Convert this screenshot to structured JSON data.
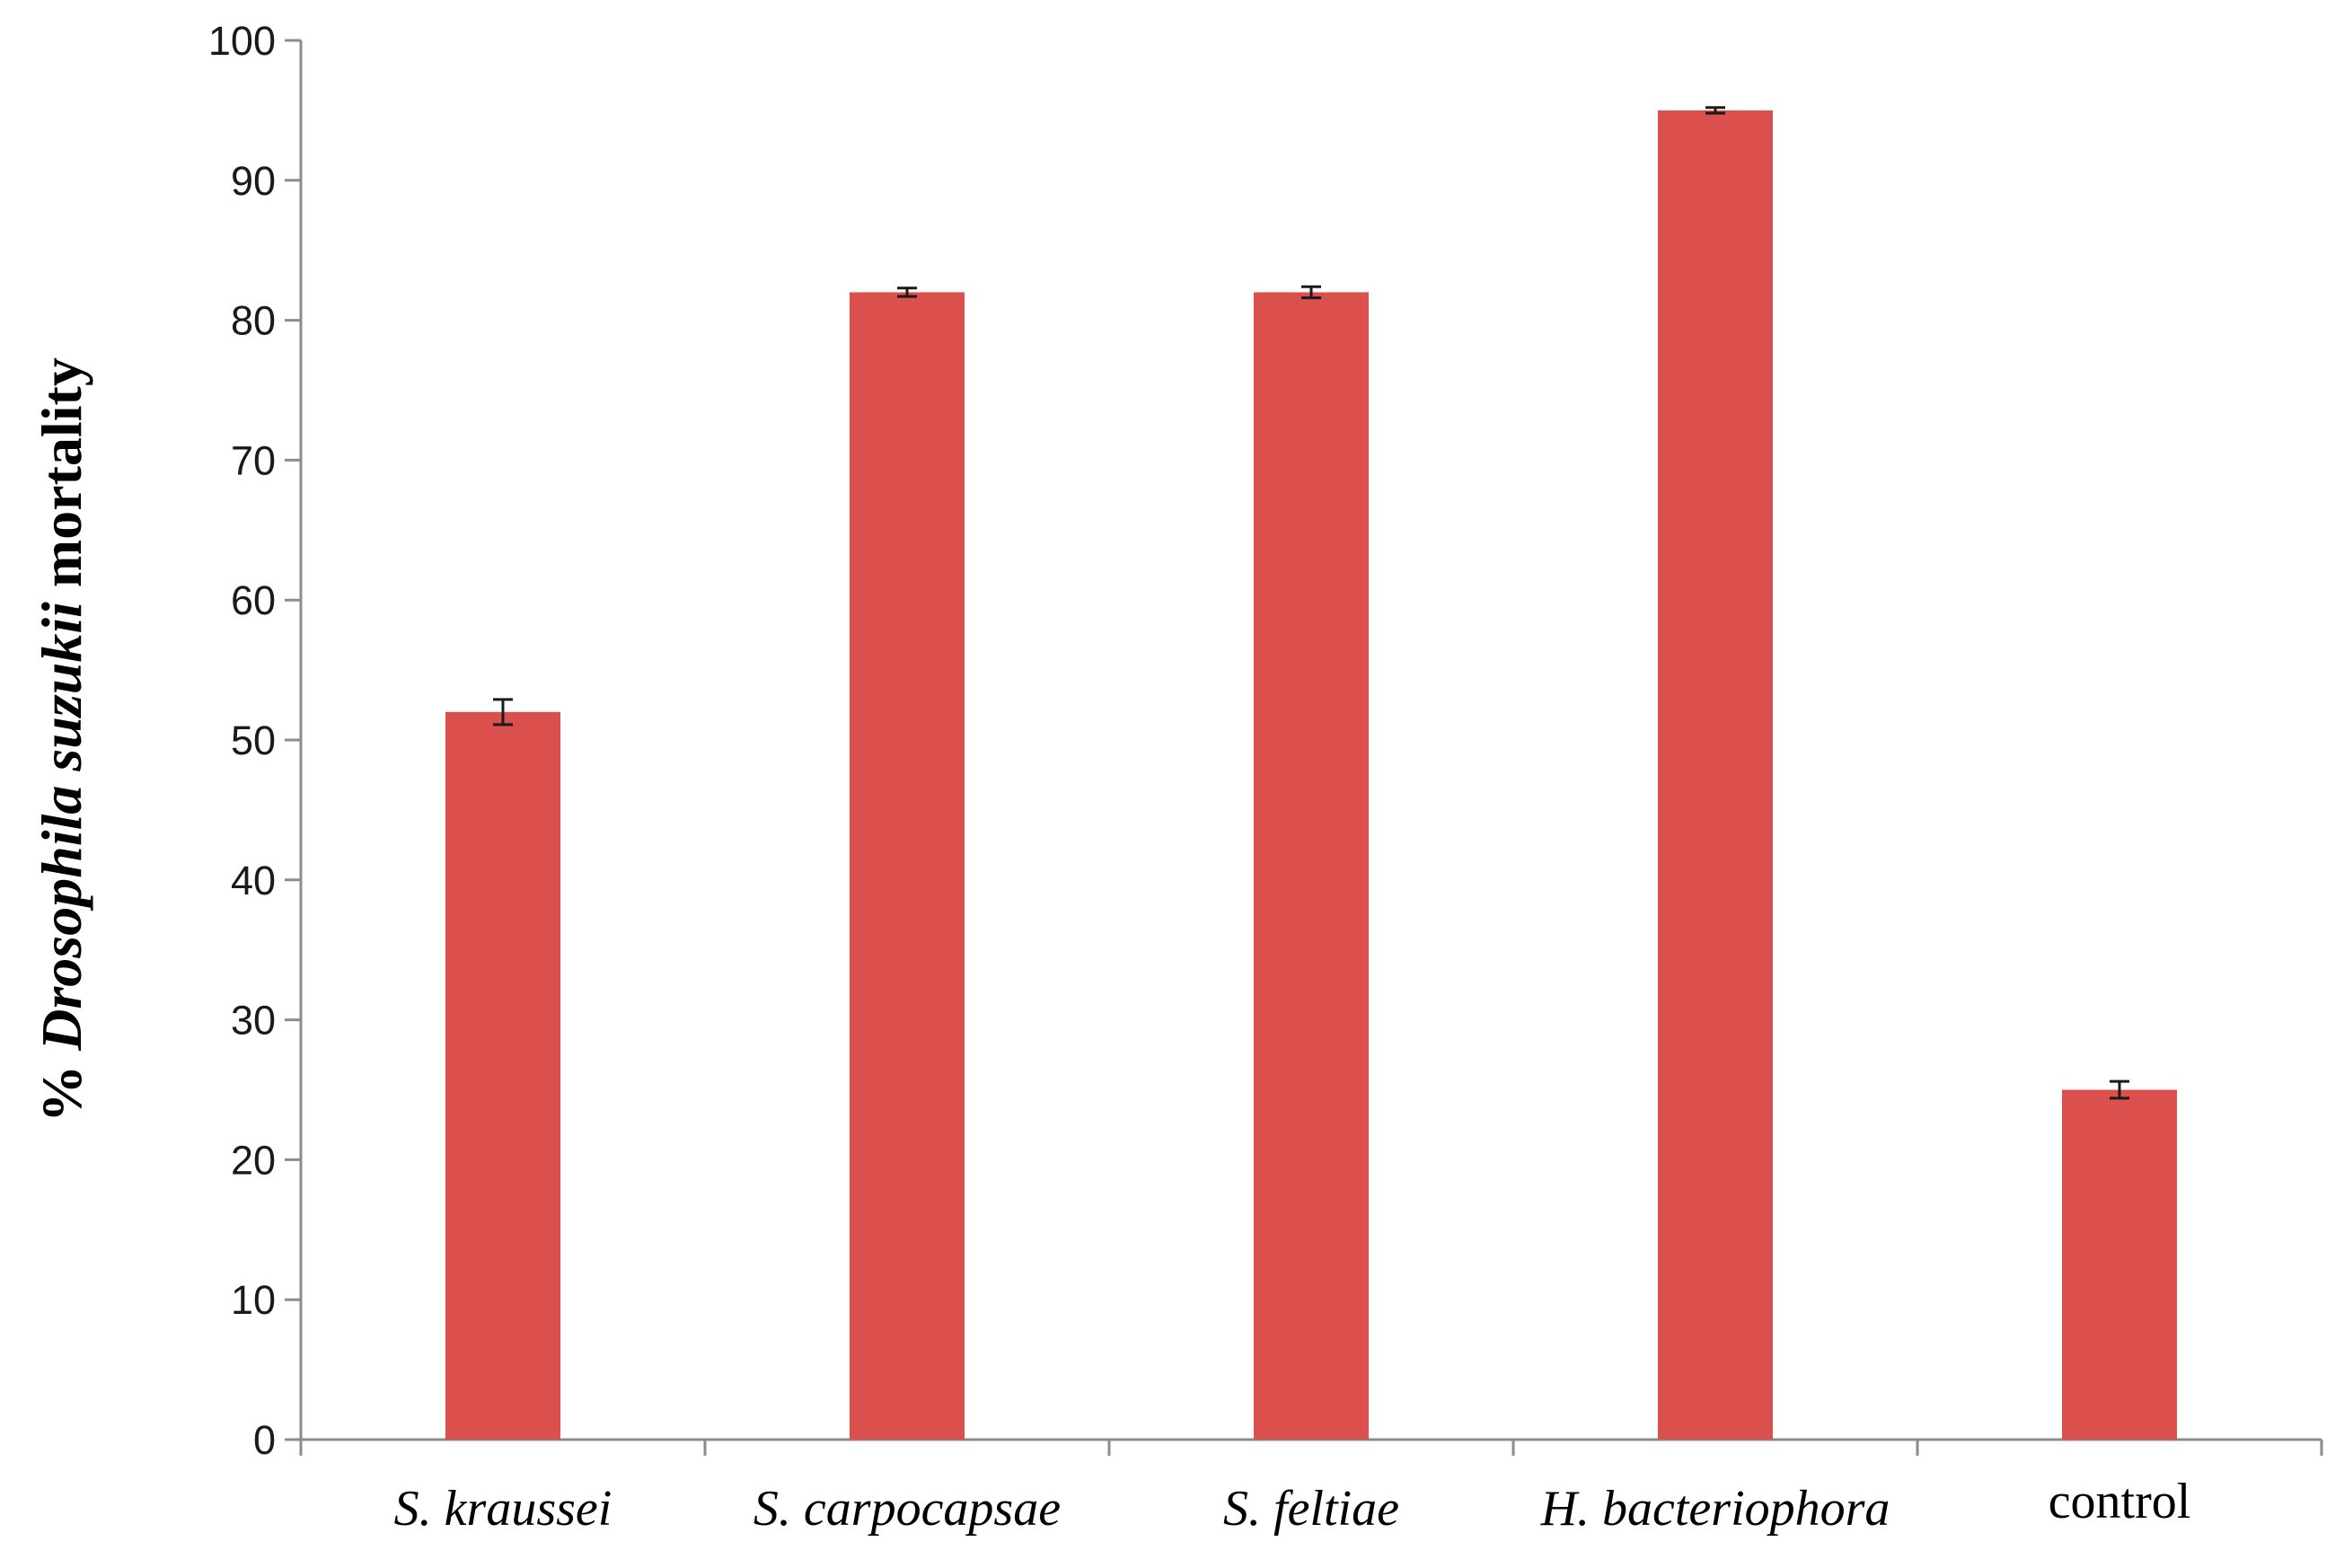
{
  "chart_data": {
    "type": "bar",
    "title": "",
    "xlabel": "",
    "ylabel": {
      "prefix": "% ",
      "italic": "Drosophila suzukii",
      "suffix": " mortality"
    },
    "ylim": [
      0,
      100
    ],
    "yticks": [
      0,
      10,
      20,
      30,
      40,
      50,
      60,
      70,
      80,
      90,
      100
    ],
    "grid": false,
    "categories": [
      "S. kraussei",
      "S. carpocapsae",
      "S. feltiae",
      "H. bacteriophora",
      "control"
    ],
    "category_italic": [
      true,
      true,
      true,
      true,
      false
    ],
    "values": [
      52,
      82,
      82,
      95,
      25
    ],
    "errors": [
      0.9,
      0.3,
      0.4,
      0.2,
      0.6
    ],
    "bar_color": "#db4f4d"
  }
}
